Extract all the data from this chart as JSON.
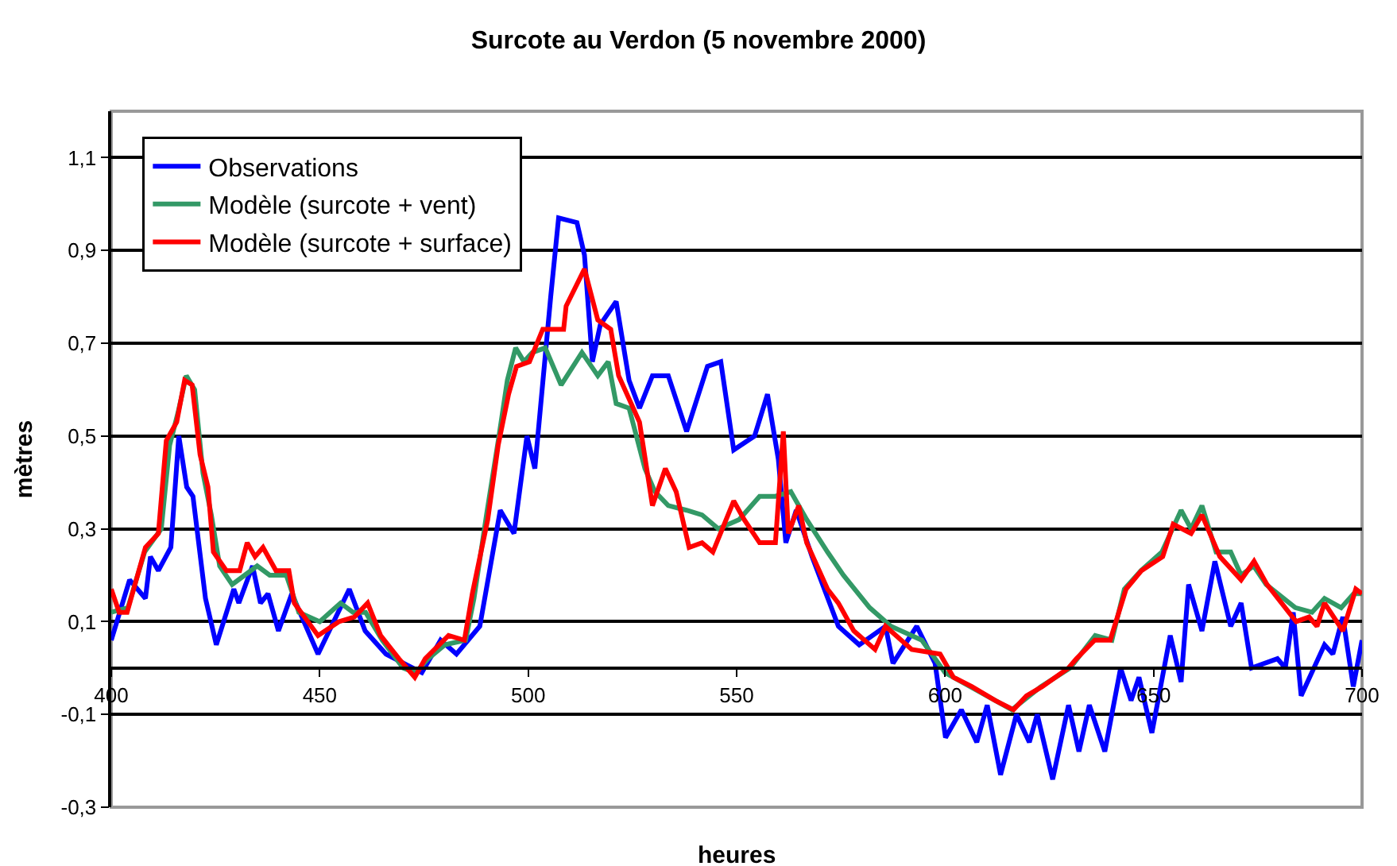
{
  "chart_data": {
    "type": "line",
    "title": "Surcote au Verdon (5 novembre 2000)",
    "xlabel": "heures",
    "ylabel": "mètres",
    "xlim": [
      400,
      700
    ],
    "xticks": [
      400,
      450,
      500,
      550,
      600,
      650,
      700
    ],
    "ylim": [
      -0.3,
      1.2
    ],
    "yticks": [
      {
        "value": -0.3,
        "label": "-0,3"
      },
      {
        "value": -0.1,
        "label": "-0,1"
      },
      {
        "value": 0.1,
        "label": "0,1"
      },
      {
        "value": 0.3,
        "label": "0,3"
      },
      {
        "value": 0.5,
        "label": "0,5"
      },
      {
        "value": 0.7,
        "label": "0,7"
      },
      {
        "value": 0.9,
        "label": "0,9"
      },
      {
        "value": 1.1,
        "label": "1,1"
      }
    ],
    "grid": "y",
    "legend": "top left",
    "series": [
      {
        "name": "Observations",
        "color": "#0000ff",
        "x": [
          400,
          404.4,
          408.2,
          409.4,
          411.3,
          414.3,
          416.2,
          418.1,
          419.6,
          422.6,
          425.2,
          429.4,
          430.6,
          433.9,
          435.8,
          437.6,
          440.1,
          443.3,
          449.6,
          457.1,
          460.9,
          465.9,
          474.5,
          479,
          482.8,
          488.4,
          493.3,
          496.6,
          499.7,
          501.6,
          505.4,
          507.3,
          511.7,
          513.5,
          515.4,
          517.3,
          521.1,
          524.2,
          526.7,
          529.8,
          533.6,
          538,
          543,
          546.2,
          549.3,
          554.3,
          557.4,
          560,
          561.8,
          564.3,
          568.1,
          574.4,
          579.4,
          585.7,
          587.5,
          593.2,
          597.6,
          600.1,
          603.9,
          607.6,
          610.1,
          613.3,
          617.1,
          620.2,
          622.1,
          625.8,
          629.6,
          632.1,
          634.6,
          638.3,
          642.1,
          644.6,
          646.5,
          649.6,
          654,
          656.6,
          658.4,
          661.6,
          664.7,
          668.5,
          671,
          673.5,
          679.7,
          681.6,
          683.5,
          685.4,
          691,
          693,
          695.4,
          697.9,
          700
        ],
        "values": [
          0.06,
          0.19,
          0.15,
          0.24,
          0.21,
          0.26,
          0.5,
          0.39,
          0.37,
          0.15,
          0.05,
          0.17,
          0.14,
          0.22,
          0.14,
          0.16,
          0.08,
          0.16,
          0.03,
          0.17,
          0.08,
          0.03,
          -0.01,
          0.06,
          0.03,
          0.09,
          0.34,
          0.29,
          0.5,
          0.43,
          0.8,
          0.97,
          0.96,
          0.89,
          0.66,
          0.74,
          0.79,
          0.62,
          0.56,
          0.63,
          0.63,
          0.51,
          0.65,
          0.66,
          0.47,
          0.5,
          0.59,
          0.45,
          0.27,
          0.34,
          0.24,
          0.09,
          0.05,
          0.09,
          0.01,
          0.09,
          0.01,
          -0.15,
          -0.09,
          -0.16,
          -0.08,
          -0.23,
          -0.1,
          -0.16,
          -0.1,
          -0.24,
          -0.08,
          -0.18,
          -0.08,
          -0.18,
          0.0,
          -0.07,
          -0.02,
          -0.14,
          0.07,
          -0.03,
          0.18,
          0.08,
          0.23,
          0.09,
          0.14,
          0.0,
          0.02,
          0.0,
          0.12,
          -0.06,
          0.05,
          0.03,
          0.11,
          -0.04,
          0.06
        ]
      },
      {
        "name": "Modèle (surcote + vent)",
        "color": "#339966",
        "x": [
          400,
          404,
          408,
          412,
          414,
          416,
          418,
          420,
          422,
          424,
          426,
          429,
          432,
          435,
          438,
          442,
          445,
          450,
          455,
          458,
          461,
          465,
          470,
          473,
          476,
          480,
          485,
          487,
          490,
          493,
          495,
          497,
          499,
          501,
          504.1,
          507.9,
          512.9,
          516.7,
          519.2,
          521.1,
          524.2,
          528,
          530.4,
          533.6,
          538,
          541.7,
          545.6,
          550.6,
          555.5,
          559.3,
          563,
          566.8,
          571.8,
          575.6,
          581.9,
          587,
          594.4,
          600,
          612,
          616,
          623,
          630,
          636,
          640,
          643,
          647,
          652,
          656.6,
          659,
          661.6,
          665,
          668.5,
          671,
          674,
          677,
          684,
          688,
          691,
          695,
          698,
          700
        ],
        "values": [
          0.12,
          0.13,
          0.25,
          0.3,
          0.48,
          0.55,
          0.63,
          0.6,
          0.42,
          0.33,
          0.22,
          0.18,
          0.2,
          0.22,
          0.2,
          0.2,
          0.12,
          0.1,
          0.14,
          0.12,
          0.12,
          0.06,
          0.0,
          -0.01,
          0.02,
          0.05,
          0.06,
          0.15,
          0.33,
          0.5,
          0.62,
          0.69,
          0.66,
          0.68,
          0.69,
          0.61,
          0.68,
          0.63,
          0.66,
          0.57,
          0.56,
          0.43,
          0.38,
          0.35,
          0.34,
          0.33,
          0.3,
          0.32,
          0.37,
          0.37,
          0.38,
          0.32,
          0.25,
          0.2,
          0.13,
          0.09,
          0.06,
          -0.01,
          -0.07,
          -0.09,
          -0.04,
          0.0,
          0.07,
          0.06,
          0.17,
          0.21,
          0.25,
          0.34,
          0.3,
          0.35,
          0.25,
          0.25,
          0.2,
          0.22,
          0.18,
          0.13,
          0.12,
          0.15,
          0.13,
          0.16,
          0.16
        ]
      },
      {
        "name": "Modèle (surcote + surface)",
        "color": "#ff0000",
        "x": [
          400,
          401.9,
          403.8,
          408.2,
          411.3,
          413.2,
          415.7,
          417.6,
          419.4,
          421.3,
          423.2,
          424.5,
          427.6,
          430.8,
          432.6,
          434.5,
          436.4,
          439.5,
          442.6,
          443.9,
          449.6,
          454.6,
          458.3,
          461.5,
          464.6,
          469,
          472.8,
          475.3,
          480.9,
          484.7,
          486.6,
          490.3,
          492.8,
          495.3,
          497.2,
          500.3,
          503.5,
          508.5,
          509.1,
          513.5,
          516.7,
          519.8,
          521.7,
          526.7,
          529.8,
          532.9,
          535.5,
          538.6,
          541.7,
          544.3,
          549.3,
          551.8,
          555.5,
          559.3,
          561.2,
          562.4,
          564.9,
          566.8,
          571.8,
          574.4,
          578.1,
          583.2,
          585.7,
          592,
          598.8,
          602,
          606.4,
          612,
          616.4,
          619.5,
          623.3,
          629.6,
          631.5,
          635.9,
          639.6,
          643.4,
          647.1,
          652.2,
          654.7,
          659,
          661.6,
          665.9,
          671,
          674.1,
          677.2,
          684.2,
          687.3,
          689.2,
          691,
          695.4,
          698.5,
          700
        ],
        "values": [
          0.17,
          0.12,
          0.12,
          0.26,
          0.29,
          0.49,
          0.53,
          0.62,
          0.61,
          0.46,
          0.39,
          0.25,
          0.21,
          0.21,
          0.27,
          0.24,
          0.26,
          0.21,
          0.21,
          0.14,
          0.07,
          0.1,
          0.11,
          0.14,
          0.07,
          0.02,
          -0.02,
          0.02,
          0.07,
          0.06,
          0.16,
          0.32,
          0.48,
          0.59,
          0.65,
          0.66,
          0.73,
          0.73,
          0.78,
          0.86,
          0.75,
          0.73,
          0.63,
          0.53,
          0.35,
          0.43,
          0.38,
          0.26,
          0.27,
          0.25,
          0.36,
          0.32,
          0.27,
          0.27,
          0.51,
          0.29,
          0.35,
          0.27,
          0.17,
          0.14,
          0.08,
          0.04,
          0.09,
          0.04,
          0.03,
          -0.02,
          -0.04,
          -0.07,
          -0.09,
          -0.06,
          -0.04,
          0.0,
          0.02,
          0.06,
          0.06,
          0.17,
          0.21,
          0.24,
          0.31,
          0.29,
          0.33,
          0.24,
          0.19,
          0.23,
          0.18,
          0.1,
          0.11,
          0.09,
          0.14,
          0.08,
          0.17,
          0.16
        ]
      }
    ]
  }
}
